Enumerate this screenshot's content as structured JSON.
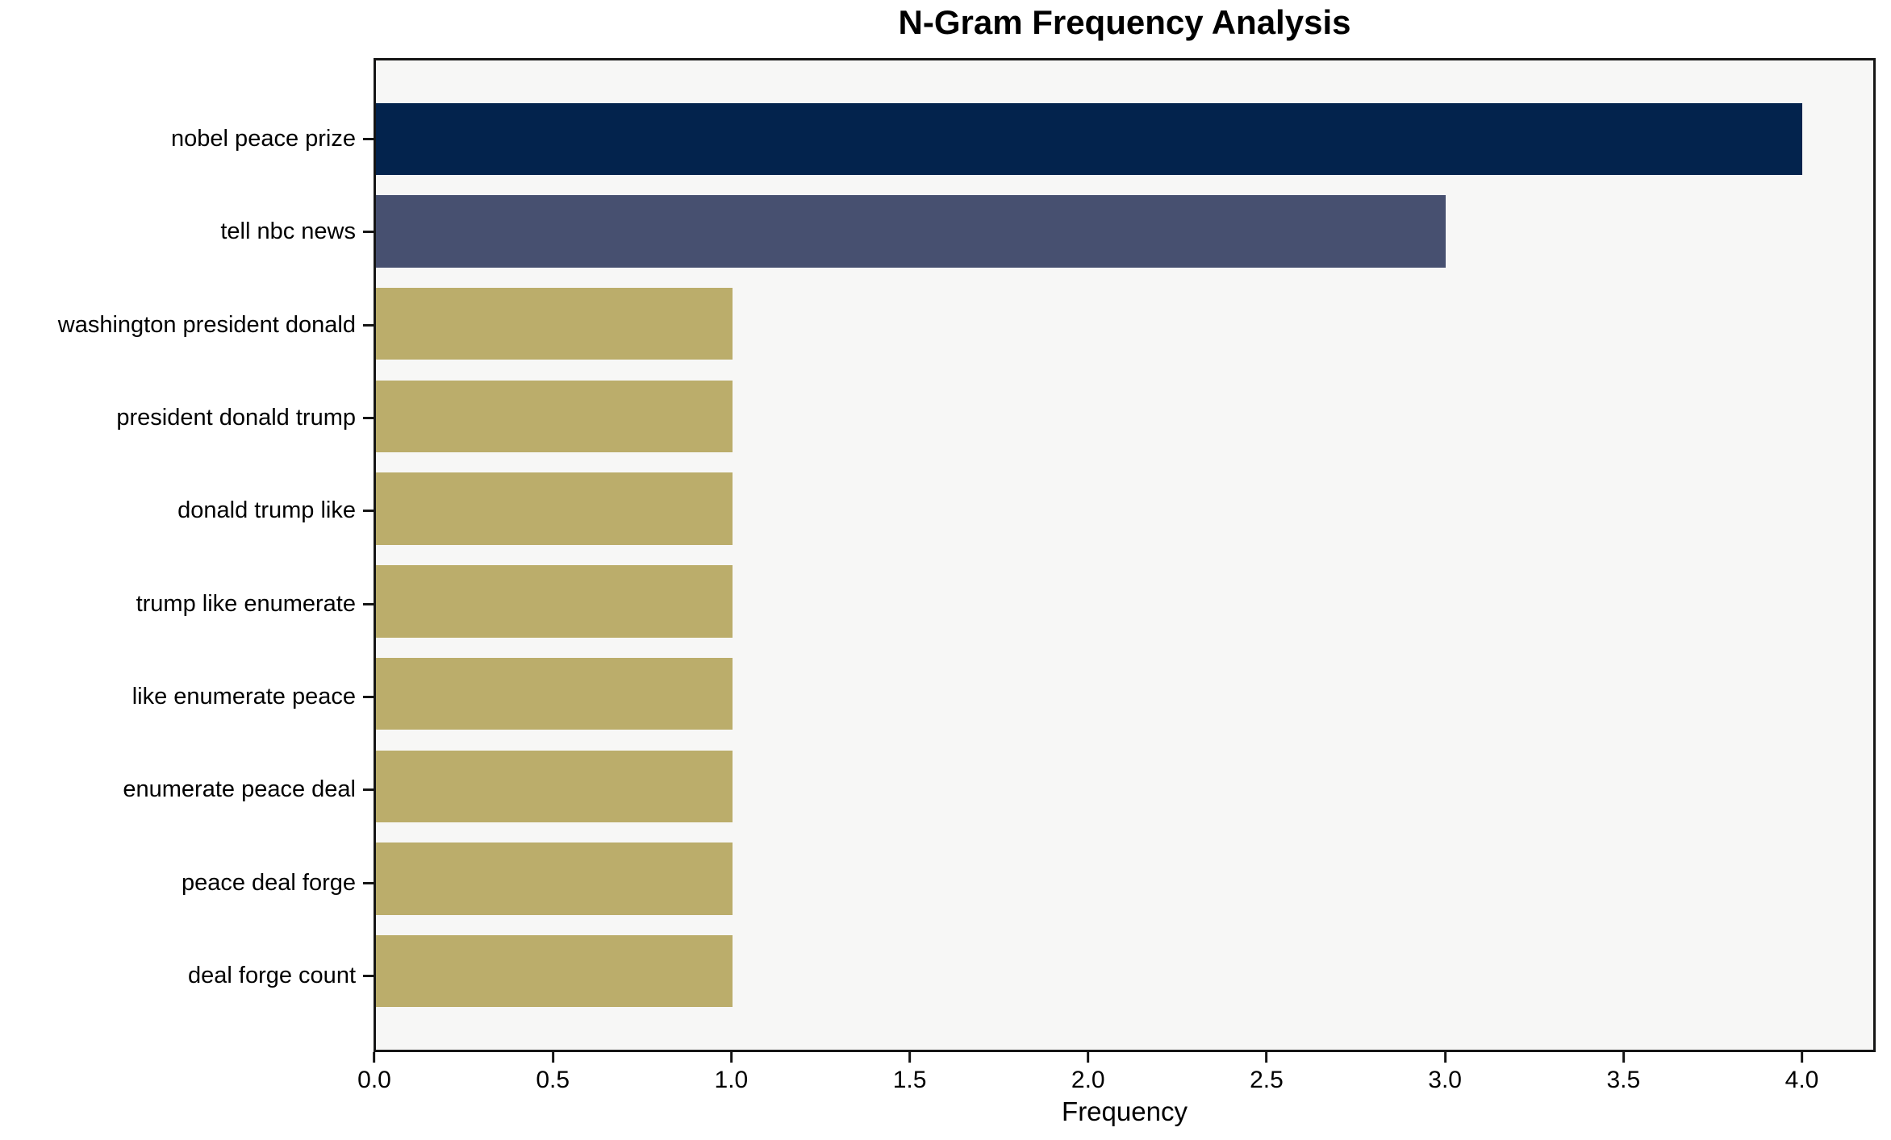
{
  "chart_data": {
    "type": "bar",
    "orientation": "horizontal",
    "title": "N-Gram Frequency Analysis",
    "xlabel": "Frequency",
    "ylabel": "",
    "categories": [
      "nobel peace prize",
      "tell nbc news",
      "washington president donald",
      "president donald trump",
      "donald trump like",
      "trump like enumerate",
      "like enumerate peace",
      "enumerate peace deal",
      "peace deal forge",
      "deal forge count"
    ],
    "values": [
      4,
      3,
      1,
      1,
      1,
      1,
      1,
      1,
      1,
      1
    ],
    "bar_colors": [
      "#03234d",
      "#475070",
      "#bbad6b",
      "#bbad6b",
      "#bbad6b",
      "#bbad6b",
      "#bbad6b",
      "#bbad6b",
      "#bbad6b",
      "#bbad6b"
    ],
    "xlim": [
      0,
      4.2
    ],
    "xticks": [
      {
        "value": 0.0,
        "label": "0.0"
      },
      {
        "value": 0.5,
        "label": "0.5"
      },
      {
        "value": 1.0,
        "label": "1.0"
      },
      {
        "value": 1.5,
        "label": "1.5"
      },
      {
        "value": 2.0,
        "label": "2.0"
      },
      {
        "value": 2.5,
        "label": "2.5"
      },
      {
        "value": 3.0,
        "label": "3.0"
      },
      {
        "value": 3.5,
        "label": "3.5"
      },
      {
        "value": 4.0,
        "label": "4.0"
      }
    ],
    "grid": false,
    "legend_position": "none",
    "plot_background": "#f7f7f6",
    "figure_background": "#ffffff",
    "spine_color": "#151515"
  }
}
